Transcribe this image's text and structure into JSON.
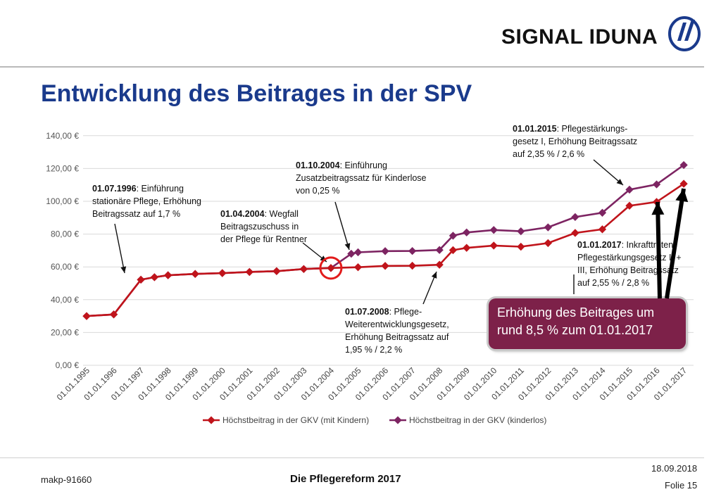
{
  "header": {
    "logo_text": "SIGNAL IDUNA",
    "title": "Entwicklung des Beitrages in der SPV"
  },
  "colors": {
    "title": "#1a3a8c",
    "series_mit_kindern": "#c0141b",
    "series_kinderlos": "#7d2462",
    "callout_bg": "#7d2149",
    "highlight_circle": "#e21b1b"
  },
  "chart_data": {
    "type": "line",
    "title": "",
    "xlabel": "",
    "ylabel": "",
    "x": [
      "01.01.1995",
      "01.01.1996",
      "01.01.1997",
      "01.01.1998",
      "01.01.1999",
      "01.01.2000",
      "01.01.2001",
      "01.01.2002",
      "01.01.2003",
      "01.01.2004",
      "01.01.2005",
      "01.01.2006",
      "01.01.2007",
      "01.01.2008",
      "01.01.2009",
      "01.01.2010",
      "01.01.2011",
      "01.01.2012",
      "01.01.2013",
      "01.01.2014",
      "01.01.2015",
      "01.01.2016",
      "01.01.2017"
    ],
    "ylim": [
      0,
      140
    ],
    "y_ticks": [
      "0,00 €",
      "20,00 €",
      "40,00 €",
      "60,00 €",
      "80,00 €",
      "100,00 €",
      "120,00 €",
      "140,00 €"
    ],
    "grid": true,
    "legend_position": "bottom",
    "series": [
      {
        "name": "Höchstbeitrag in der GKV (mit Kindern)",
        "points": [
          [
            0,
            30.0
          ],
          [
            1,
            31.0
          ],
          [
            2,
            52.2
          ],
          [
            2.5,
            53.7
          ],
          [
            3,
            54.9
          ],
          [
            4,
            55.7
          ],
          [
            5,
            56.2
          ],
          [
            6,
            56.9
          ],
          [
            7,
            57.4
          ],
          [
            8,
            58.7
          ],
          [
            9,
            59.3
          ],
          [
            10,
            59.8
          ],
          [
            11,
            60.6
          ],
          [
            12,
            60.7
          ],
          [
            13,
            61.3
          ],
          [
            13.5,
            70.2
          ],
          [
            14,
            71.6
          ],
          [
            15,
            73.0
          ],
          [
            16,
            72.3
          ],
          [
            17,
            74.5
          ],
          [
            18,
            80.7
          ],
          [
            19,
            82.9
          ],
          [
            20,
            97.3
          ],
          [
            21,
            99.6
          ],
          [
            22,
            110.7
          ]
        ]
      },
      {
        "name": "Höchstbeitrag in der GKV (kinderlos)",
        "points": [
          [
            0,
            30.0
          ],
          [
            1,
            31.0
          ],
          [
            2,
            52.2
          ],
          [
            2.5,
            53.7
          ],
          [
            3,
            54.9
          ],
          [
            4,
            55.7
          ],
          [
            5,
            56.2
          ],
          [
            6,
            56.9
          ],
          [
            7,
            57.4
          ],
          [
            8,
            58.7
          ],
          [
            9,
            59.3
          ],
          [
            9.75,
            68.0
          ],
          [
            10,
            68.9
          ],
          [
            11,
            69.6
          ],
          [
            12,
            69.7
          ],
          [
            13,
            70.3
          ],
          [
            13.5,
            79.0
          ],
          [
            14,
            81.0
          ],
          [
            15,
            82.5
          ],
          [
            16,
            81.7
          ],
          [
            17,
            84.1
          ],
          [
            18,
            90.4
          ],
          [
            19,
            93.0
          ],
          [
            20,
            107.1
          ],
          [
            21,
            110.3
          ],
          [
            22,
            122.1
          ]
        ]
      }
    ],
    "annotations": [
      {
        "date": "01.07.1996",
        "lines": [
          ": Einführung",
          "stationäre Pflege, Erhöhung",
          "Beitragssatz auf 1,7 %"
        ]
      },
      {
        "date": "01.04.2004",
        "lines": [
          ": Wegfall",
          "Beitragszuschuss in",
          "der Pflege für Rentner"
        ]
      },
      {
        "date": "01.10.2004",
        "lines": [
          ": Einführung",
          "Zusatzbeitragssatz für Kinderlose",
          "von 0,25 %"
        ]
      },
      {
        "date": "01.07.2008",
        "lines": [
          ": Pflege-",
          "Weiterentwicklungsgesetz,",
          "Erhöhung Beitragssatz auf",
          "1,95 % / 2,2 %"
        ]
      },
      {
        "date": "01.01.2015",
        "lines": [
          ": Pflegestärkungs-",
          "gesetz I, Erhöhung Beitragssatz",
          "auf 2,35 % / 2,6 %"
        ]
      },
      {
        "date": "01.01.2017",
        "lines": [
          ": Inkrafttreten",
          "Pflegestärkungsgesetz II +",
          "III, Erhöhung Beitragssatz",
          "auf 2,55 % / 2,8 %"
        ]
      }
    ],
    "callout": [
      "Erhöhung des Beitrages um",
      "rund 8,5 % zum 01.01.2017"
    ]
  },
  "footer": {
    "id": "makp-91660",
    "center": "Die Pflegereform 2017",
    "date": "18.09.2018",
    "folie": "Folie 15"
  }
}
